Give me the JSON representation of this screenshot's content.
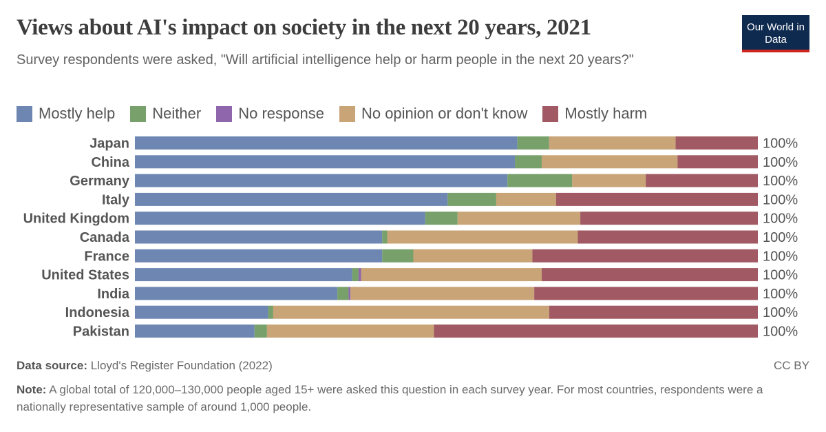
{
  "title": "Views about AI's impact on society in the next 20 years, 2021",
  "subtitle": "Survey respondents were asked, \"Will artificial intelligence help or harm people in the next 20 years?\"",
  "logo": "Our World in Data",
  "source_label": "Data source:",
  "source": "Lloyd's Register Foundation (2022)",
  "license": "CC BY",
  "note_label": "Note:",
  "note": "A global total of 120,000–130,000 people aged 15+ were asked this question in each survey year. For most countries, respondents were a nationally representative sample of around 1,000 people.",
  "chart_data": {
    "type": "bar",
    "stacked": true,
    "orientation": "horizontal",
    "unit": "%",
    "categories": [
      "Japan",
      "China",
      "Germany",
      "Italy",
      "United Kingdom",
      "Canada",
      "France",
      "United States",
      "India",
      "Indonesia",
      "Pakistan"
    ],
    "totals": [
      "100%",
      "100%",
      "100%",
      "100%",
      "100%",
      "100%",
      "100%",
      "100%",
      "100%",
      "100%",
      "100%"
    ],
    "legend_placement": "top",
    "series": [
      {
        "name": "Mostly help",
        "color": "#6d87b2",
        "values": [
          61.4,
          61.0,
          59.8,
          50.2,
          46.6,
          39.7,
          39.7,
          34.9,
          32.5,
          21.4,
          19.2
        ]
      },
      {
        "name": "Neither",
        "color": "#77a06a",
        "values": [
          5.1,
          4.3,
          10.4,
          7.8,
          5.2,
          0.8,
          5.0,
          1.0,
          1.8,
          0.8,
          2.0
        ]
      },
      {
        "name": "No response",
        "color": "#8f66ab",
        "values": [
          0,
          0,
          0,
          0,
          0,
          0,
          0,
          0.4,
          0.3,
          0,
          0
        ]
      },
      {
        "name": "No opinion or don't know",
        "color": "#c8a477",
        "values": [
          20.3,
          21.8,
          11.8,
          9.6,
          19.7,
          30.6,
          19.1,
          29.0,
          29.5,
          44.3,
          26.8
        ]
      },
      {
        "name": "Mostly harm",
        "color": "#a15a63",
        "values": [
          13.2,
          12.9,
          18.0,
          32.4,
          28.5,
          28.9,
          36.2,
          34.7,
          35.9,
          33.5,
          52.0
        ]
      }
    ]
  }
}
